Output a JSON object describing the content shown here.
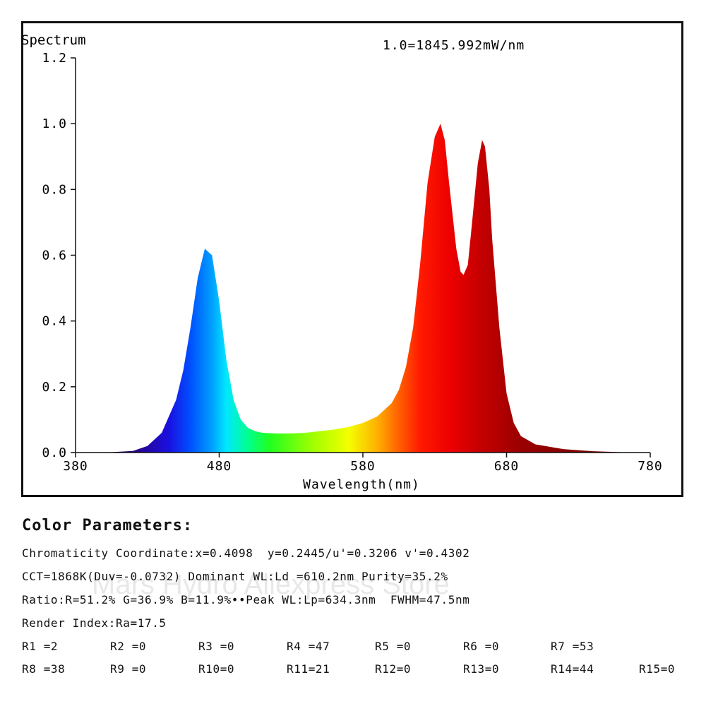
{
  "chart_data": {
    "type": "area",
    "title": "Spectrum",
    "annotation": "1.0=1845.992mW/nm",
    "xlabel": "Wavelength(nm)",
    "ylabel": "",
    "xlim": [
      380,
      780
    ],
    "ylim": [
      0,
      1.2
    ],
    "x_ticks": [
      "380",
      "480",
      "580",
      "680",
      "780"
    ],
    "y_ticks": [
      "0.0",
      "0.2",
      "0.4",
      "0.6",
      "0.8",
      "1.0",
      "1.2"
    ],
    "grid": false,
    "fill": "wavelength-colored spectrum",
    "x": [
      380,
      400,
      420,
      430,
      440,
      450,
      455,
      460,
      465,
      470,
      475,
      480,
      485,
      490,
      495,
      500,
      505,
      510,
      520,
      530,
      540,
      550,
      560,
      570,
      580,
      590,
      600,
      605,
      610,
      615,
      620,
      625,
      630,
      634,
      637,
      640,
      645,
      648,
      650,
      653,
      656,
      660,
      663,
      665,
      668,
      670,
      675,
      680,
      685,
      690,
      700,
      720,
      740,
      760,
      780
    ],
    "y": [
      0.0,
      0.0,
      0.005,
      0.02,
      0.06,
      0.16,
      0.25,
      0.38,
      0.53,
      0.62,
      0.6,
      0.46,
      0.28,
      0.16,
      0.1,
      0.075,
      0.065,
      0.06,
      0.058,
      0.058,
      0.06,
      0.065,
      0.07,
      0.078,
      0.09,
      0.11,
      0.15,
      0.19,
      0.26,
      0.38,
      0.58,
      0.82,
      0.96,
      1.0,
      0.95,
      0.82,
      0.62,
      0.55,
      0.54,
      0.57,
      0.7,
      0.88,
      0.95,
      0.93,
      0.8,
      0.65,
      0.38,
      0.18,
      0.09,
      0.05,
      0.025,
      0.01,
      0.004,
      0.001,
      0.0
    ]
  },
  "color_parameters": {
    "title": "Color Parameters:",
    "lines": [
      "Chromaticity Coordinate:x=0.4098  y=0.2445/u'=0.3206 v'=0.4302",
      "CCT=1868K(Duv=-0.0732) Dominant WL:Ld =610.2nm Purity=35.2%",
      "Ratio:R=51.2% G=36.9% B=11.9%••Peak WL:Lp=634.3nm  FWHM=47.5nm",
      "Render Index:Ra=17.5"
    ],
    "r_row1": [
      "R1 =2",
      "R2 =0",
      "R3 =0",
      "R4 =47",
      "R5 =0",
      "R6 =0",
      "R7 =53"
    ],
    "r_row2": [
      "R8 =38",
      "R9 =0",
      "R10=0",
      "R11=21",
      "R12=0",
      "R13=0",
      "R14=44",
      "R15=0"
    ]
  },
  "watermark": "Mars Hydro Aliexpress Store"
}
